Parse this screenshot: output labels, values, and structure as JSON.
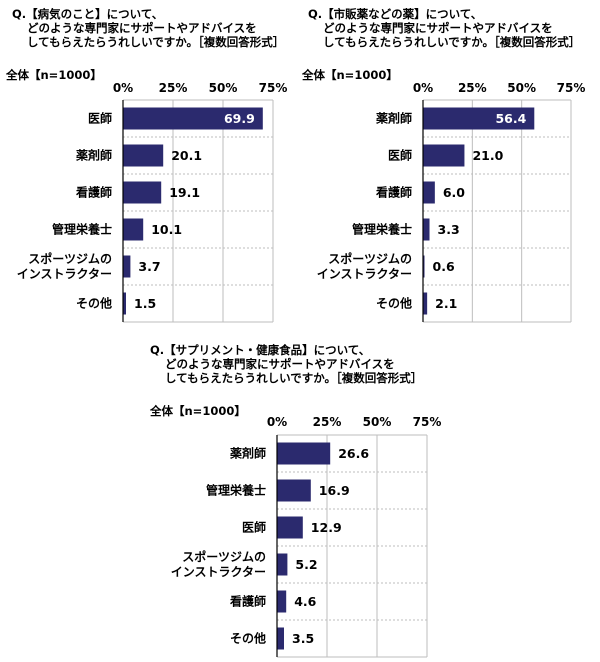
{
  "colors": {
    "bar": "#2b2a6e",
    "grid": "#bdbdbd",
    "axis": "#000000",
    "value_inside": "#ffffff"
  },
  "chart_data": [
    {
      "type": "bar",
      "orientation": "horizontal",
      "question": {
        "line1": "Q.【病気のこと】について、",
        "line2": "どのような専門家にサポートやアドバイスを",
        "line3": "してもらえたらうれしいですか。［複数回答形式］"
      },
      "base_label": "全体【n=1000】",
      "x_ticks": [
        "0%",
        "25%",
        "50%",
        "75%"
      ],
      "xlim": [
        0,
        75
      ],
      "categories": [
        [
          "医師"
        ],
        [
          "薬剤師"
        ],
        [
          "看護師"
        ],
        [
          "管理栄養士"
        ],
        [
          "スポーツジムの",
          "インストラクター"
        ],
        [
          "その他"
        ]
      ],
      "values": [
        69.9,
        20.1,
        19.1,
        10.1,
        3.7,
        1.5
      ],
      "value_labels": [
        "69.9",
        "20.1",
        "19.1",
        "10.1",
        "3.7",
        "1.5"
      ]
    },
    {
      "type": "bar",
      "orientation": "horizontal",
      "question": {
        "line1": "Q.【市販薬などの薬】について、",
        "line2": "どのような専門家にサポートやアドバイスを",
        "line3": "してもらえたらうれしいですか。［複数回答形式］"
      },
      "base_label": "全体【n=1000】",
      "x_ticks": [
        "0%",
        "25%",
        "50%",
        "75%"
      ],
      "xlim": [
        0,
        75
      ],
      "categories": [
        [
          "薬剤師"
        ],
        [
          "医師"
        ],
        [
          "看護師"
        ],
        [
          "管理栄養士"
        ],
        [
          "スポーツジムの",
          "インストラクター"
        ],
        [
          "その他"
        ]
      ],
      "values": [
        56.4,
        21.0,
        6.0,
        3.3,
        0.6,
        2.1
      ],
      "value_labels": [
        "56.4",
        "21.0",
        "6.0",
        "3.3",
        "0.6",
        "2.1"
      ]
    },
    {
      "type": "bar",
      "orientation": "horizontal",
      "question": {
        "line1": "Q.【サプリメント・健康食品】について、",
        "line2": "どのような専門家にサポートやアドバイスを",
        "line3": "してもらえたらうれしいですか。［複数回答形式］"
      },
      "base_label": "全体【n=1000】",
      "x_ticks": [
        "0%",
        "25%",
        "50%",
        "75%"
      ],
      "xlim": [
        0,
        75
      ],
      "categories": [
        [
          "薬剤師"
        ],
        [
          "管理栄養士"
        ],
        [
          "医師"
        ],
        [
          "スポーツジムの",
          "インストラクター"
        ],
        [
          "看護師"
        ],
        [
          "その他"
        ]
      ],
      "values": [
        26.6,
        16.9,
        12.9,
        5.2,
        4.6,
        3.5
      ],
      "value_labels": [
        "26.6",
        "16.9",
        "12.9",
        "5.2",
        "4.6",
        "3.5"
      ]
    }
  ]
}
